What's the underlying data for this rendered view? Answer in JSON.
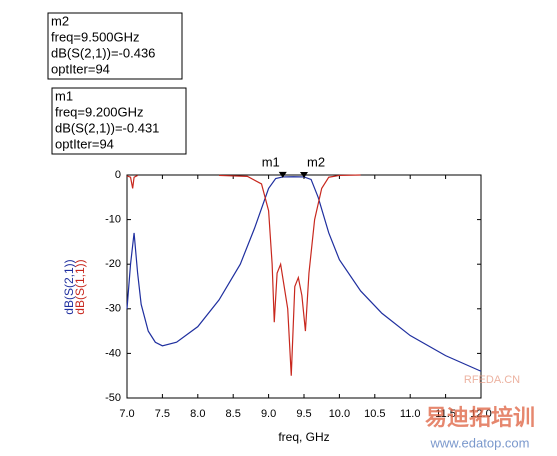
{
  "chart_data": {
    "type": "line",
    "xlabel": "freq, GHz",
    "xlim": [
      7.0,
      12.0
    ],
    "xticks": [
      {
        "value": 7,
        "label": "7.0"
      },
      {
        "value": 7.5,
        "label": "7.5"
      },
      {
        "value": 8,
        "label": "8.0"
      },
      {
        "value": 8.5,
        "label": "8.5"
      },
      {
        "value": 9,
        "label": "9.0"
      },
      {
        "value": 9.5,
        "label": "9.5"
      },
      {
        "value": 10,
        "label": "10.0"
      },
      {
        "value": 10.5,
        "label": "10.5"
      },
      {
        "value": 11,
        "label": "11.0"
      },
      {
        "value": 11.5,
        "label": "11.5"
      },
      {
        "value": 12,
        "label": "12.0"
      }
    ],
    "ylim": [
      -50,
      0
    ],
    "yticks": [
      0,
      -10,
      -20,
      -30,
      -40,
      -50
    ],
    "series": [
      {
        "name": "dB(S(2,1))",
        "color": "#1f2f9f",
        "x": [
          7.0,
          7.05,
          7.1,
          7.15,
          7.2,
          7.3,
          7.4,
          7.5,
          7.7,
          8.0,
          8.3,
          8.6,
          8.8,
          9.0,
          9.1,
          9.2,
          9.35,
          9.5,
          9.6,
          9.7,
          9.85,
          10.0,
          10.3,
          10.6,
          11.0,
          11.5,
          12.0
        ],
        "values": [
          -30,
          -20,
          -13,
          -22,
          -29,
          -35,
          -37.5,
          -38.3,
          -37.5,
          -34,
          -28,
          -20,
          -12,
          -3,
          -0.8,
          -0.43,
          -0.4,
          -0.44,
          -1,
          -5,
          -13,
          -19,
          -26,
          -31,
          -36,
          -40.5,
          -44
        ]
      },
      {
        "name": "dB(S(1,1))",
        "color": "#c8281e",
        "x": [
          7.0,
          7.05,
          7.08,
          7.1,
          7.15,
          7.5,
          8.3,
          8.7,
          8.9,
          9.0,
          9.05,
          9.08,
          9.12,
          9.17,
          9.22,
          9.27,
          9.32,
          9.37,
          9.42,
          9.47,
          9.52,
          9.57,
          9.65,
          9.75,
          9.85,
          10.0,
          10.3
        ],
        "values": [
          -0.2,
          -0.5,
          -3,
          -0.5,
          -0.1,
          null,
          -0.1,
          -0.3,
          -2,
          -8,
          -20,
          -33,
          -22,
          -20,
          -25,
          -30,
          -45,
          -25,
          -23,
          -27,
          -35,
          -22,
          -10,
          -3,
          -0.5,
          -0.1,
          0
        ]
      }
    ],
    "markers": [
      {
        "name": "m2",
        "x": 9.5,
        "y": -0.436,
        "lines": [
          "freq=9.500GHz",
          "dB(S(2,1))=-0.436",
          "optIter=94"
        ]
      },
      {
        "name": "m1",
        "x": 9.2,
        "y": -0.431,
        "lines": [
          "freq=9.200GHz",
          "dB(S(2,1))=-0.431",
          "optIter=94"
        ]
      }
    ],
    "watermarks": [
      "RFEDA.CN",
      "易迪拓培训",
      "www.edatop.com"
    ]
  }
}
